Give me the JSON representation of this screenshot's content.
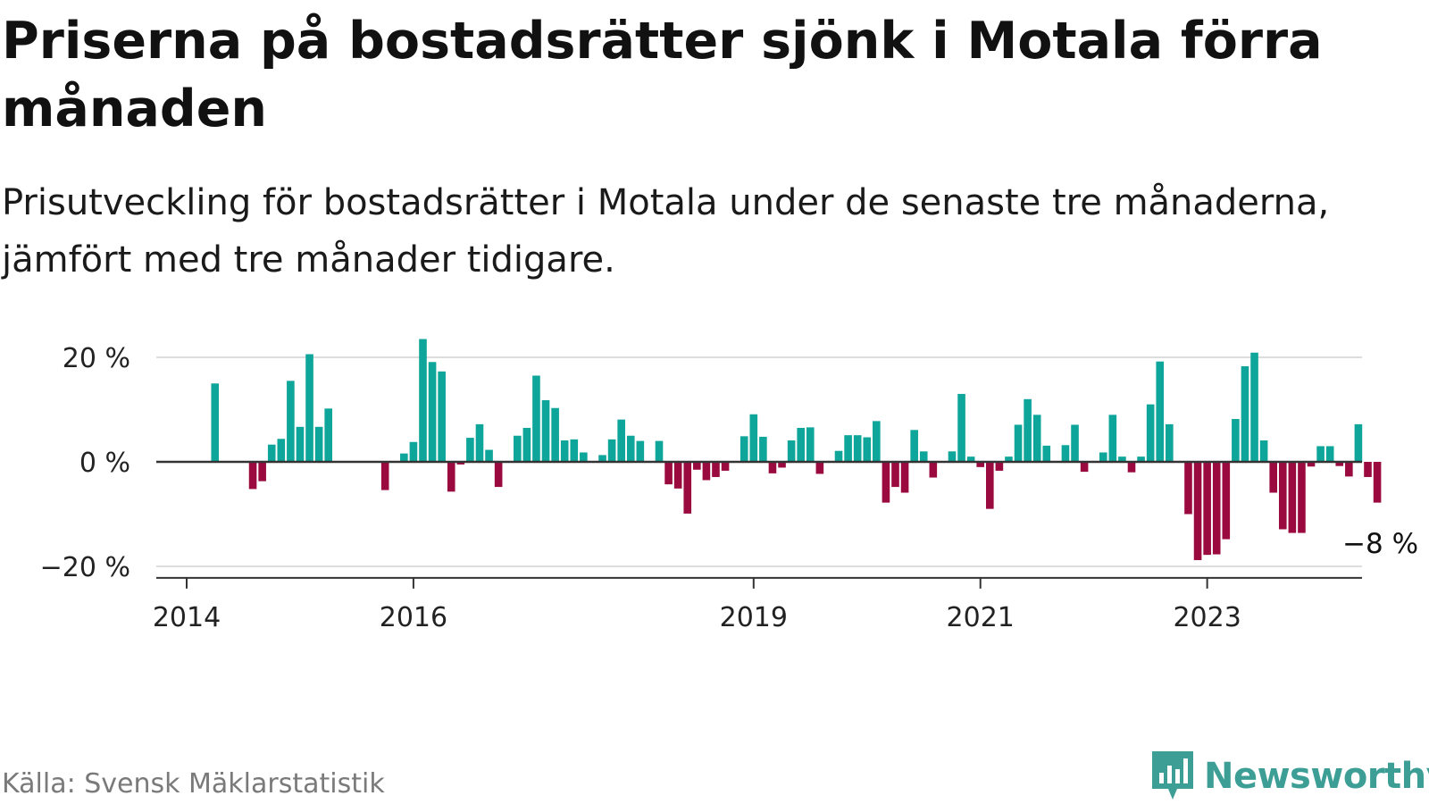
{
  "title": "Priserna på bostadsrätter sjönk i Motala förra månaden",
  "subtitle": "Prisutveckling för bostadsrätter i Motala under de senaste tre månaderna, jämfört med tre månader tidigare.",
  "source": "Källa: Svensk Mäklarstatistik",
  "brand": "Newsworthy",
  "colors": {
    "positive": "#0ea59a",
    "negative": "#9b0a3f",
    "brand": "#3d9e96",
    "grid": "#dddddd",
    "axis": "#333333"
  },
  "chart_data": {
    "type": "bar",
    "x_start": "2014-01",
    "x_ticks": [
      "2014",
      "2016",
      "2019",
      "2021",
      "2023"
    ],
    "y_ticks": [
      {
        "value": 20,
        "label": "20 %"
      },
      {
        "value": 0,
        "label": "0 %"
      },
      {
        "value": -20,
        "label": "−20 %"
      }
    ],
    "ylim": [
      -21,
      23
    ],
    "grid": true,
    "annotation": {
      "label": "−8 %",
      "value": -8
    },
    "values": [
      null,
      null,
      null,
      15,
      null,
      null,
      null,
      -5.2,
      -3.7,
      3.3,
      4.4,
      15.5,
      6.7,
      20.6,
      6.7,
      10.2,
      null,
      null,
      null,
      null,
      null,
      -5.4,
      null,
      1.6,
      3.8,
      23.5,
      19.1,
      17.3,
      -5.7,
      -0.5,
      4.6,
      7.2,
      2.3,
      -4.8,
      null,
      5,
      6.5,
      16.5,
      11.8,
      10.3,
      4.1,
      4.3,
      1.8,
      null,
      1.3,
      4.3,
      8.1,
      5,
      4,
      null,
      4,
      -4.3,
      -5.1,
      -9.9,
      -1.5,
      -3.5,
      -2.9,
      -1.7,
      null,
      4.9,
      9.1,
      4.8,
      -2.2,
      -1.1,
      4.1,
      6.5,
      6.6,
      -2.3,
      null,
      2.1,
      5.1,
      5.1,
      4.7,
      7.8,
      -7.8,
      -4.8,
      -5.9,
      6.1,
      2,
      -3,
      null,
      2,
      13,
      1,
      -1,
      -9,
      -1.7,
      1,
      7.1,
      12,
      9,
      3.1,
      null,
      3.2,
      7.1,
      -1.9,
      null,
      1.8,
      9,
      1,
      -2,
      1,
      11,
      19.2,
      7.2,
      null,
      -10,
      -18.8,
      -17.8,
      -17.7,
      -14.8,
      8.2,
      18.3,
      20.9,
      4.1,
      -5.9,
      -12.9,
      -13.6,
      -13.6,
      -0.9,
      3,
      3,
      -0.8,
      -2.8,
      7.2,
      -2.9,
      -7.8
    ]
  }
}
